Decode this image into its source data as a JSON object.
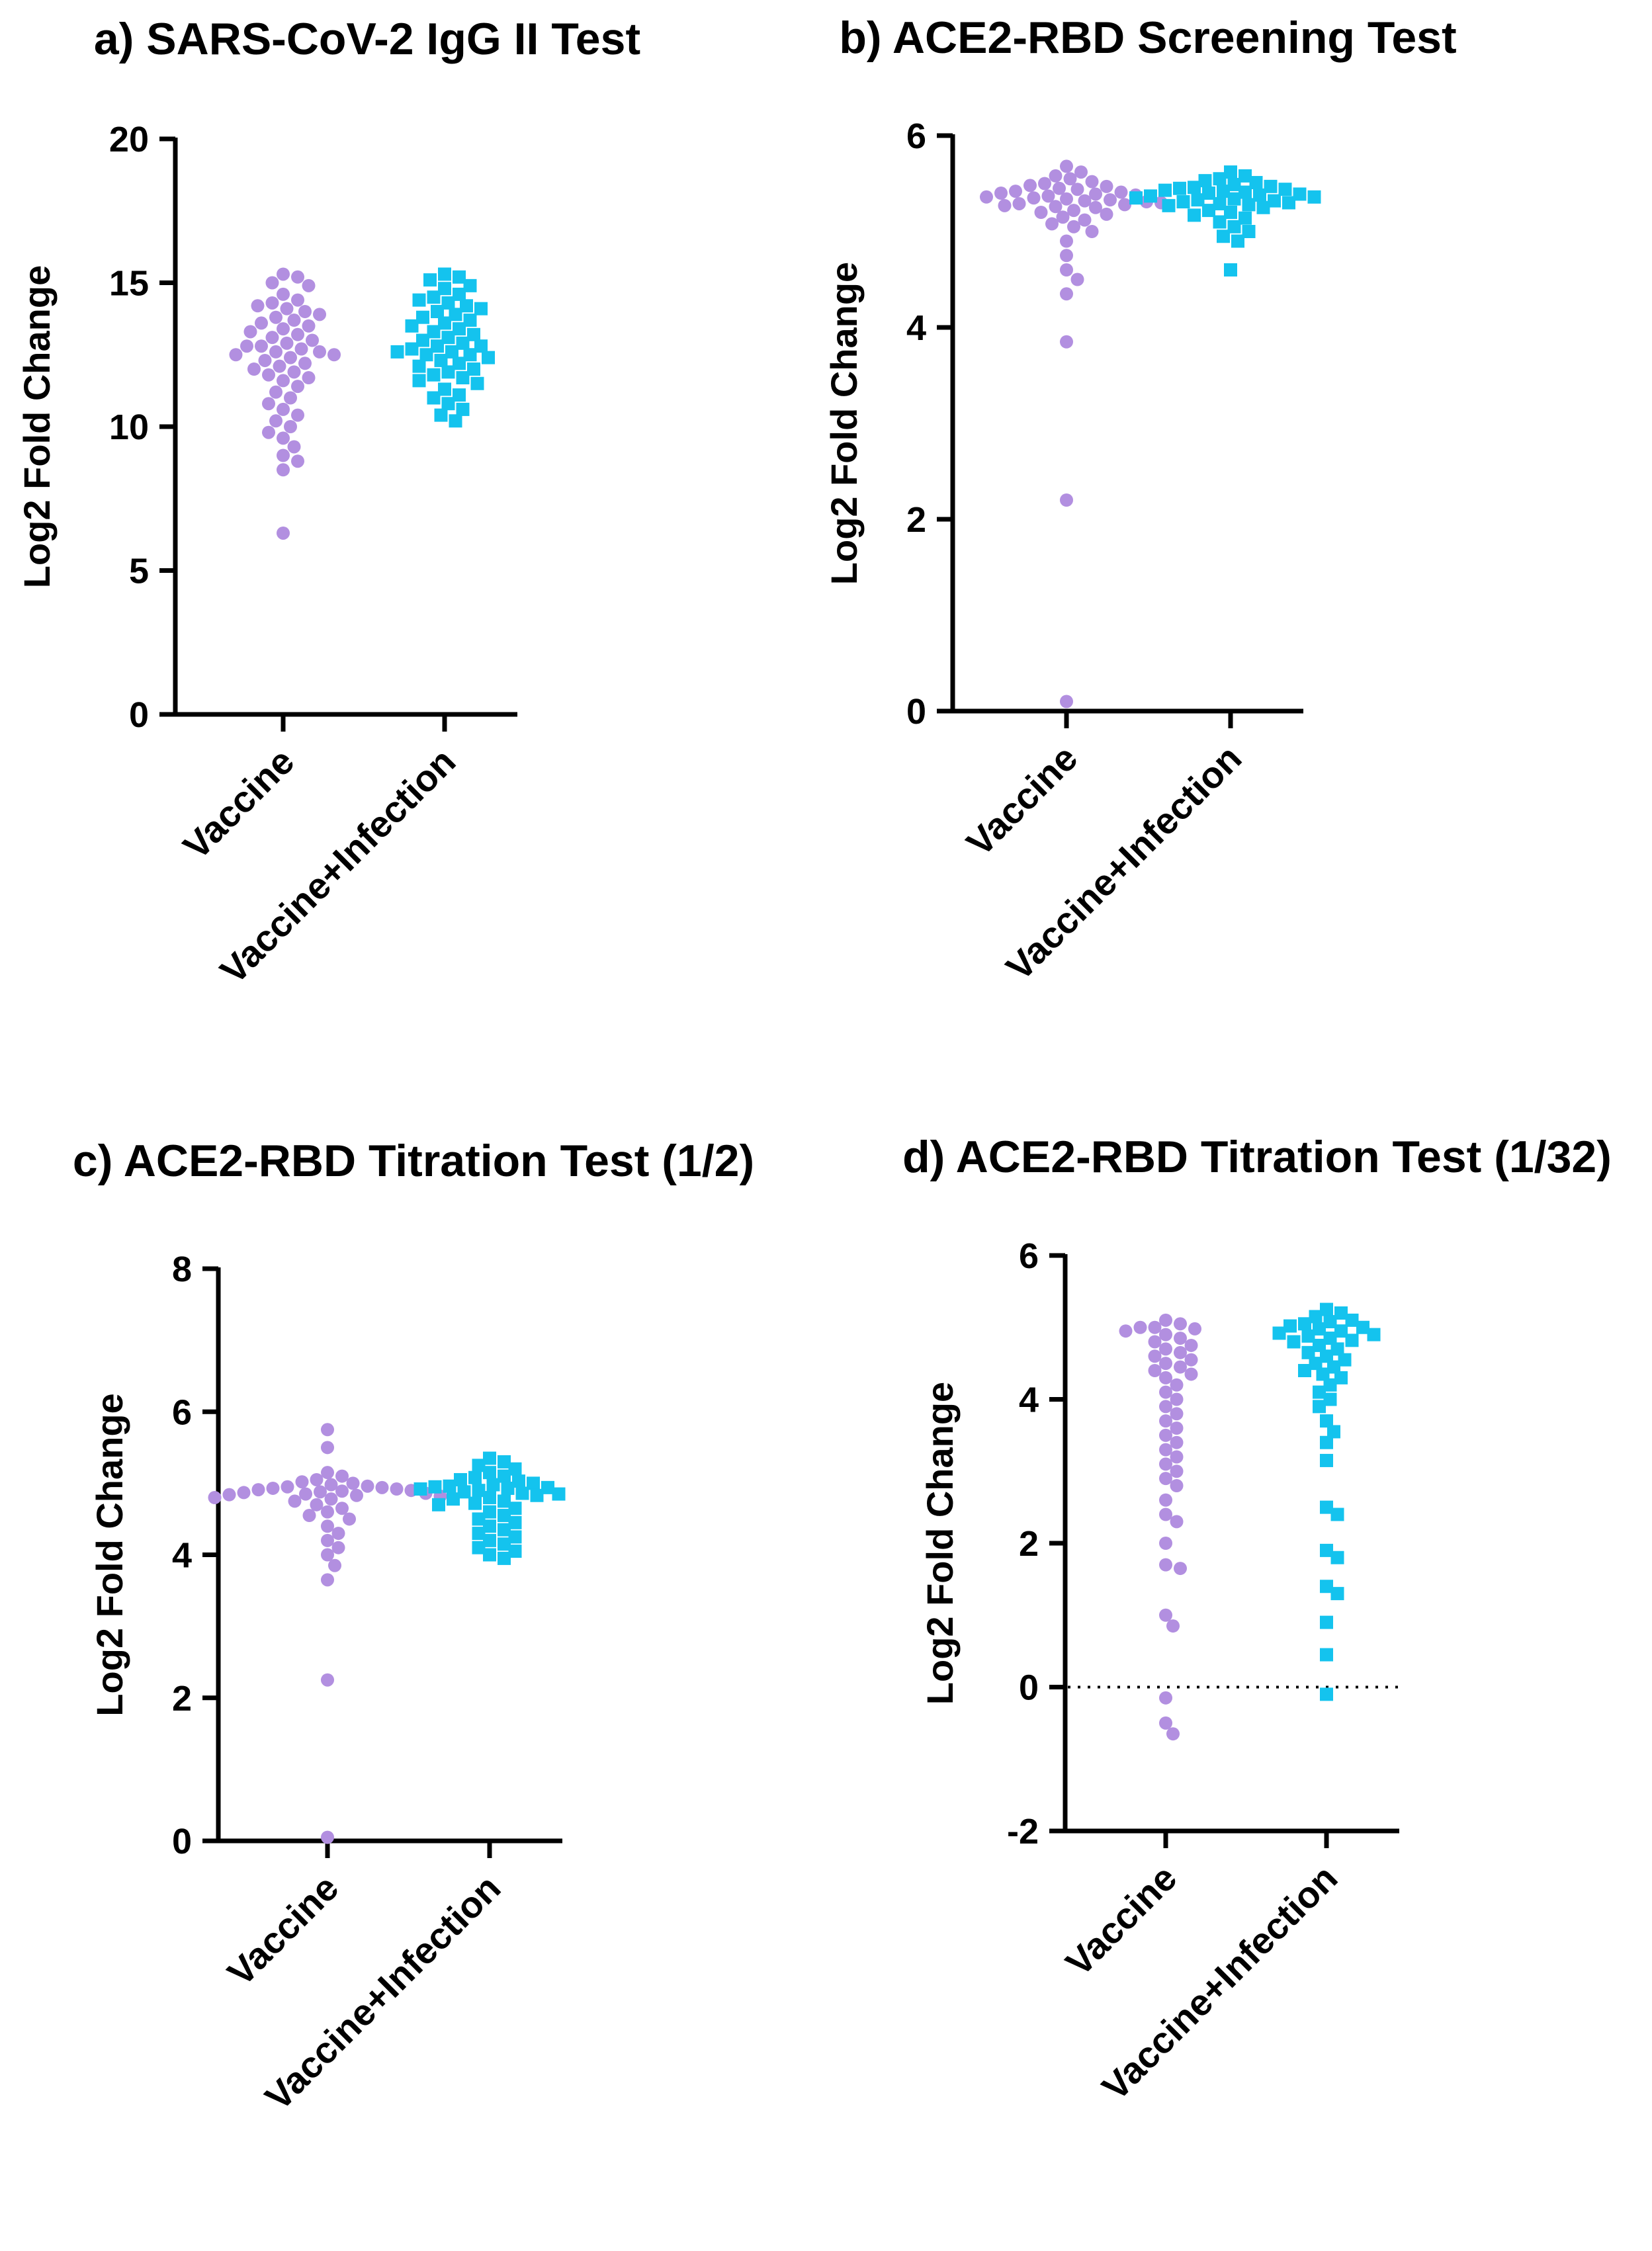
{
  "chart_data": [
    {
      "type": "scatter",
      "title": "a) SARS-CoV-2 IgG II Test",
      "ylabel": "Log2 Fold Change",
      "categories": [
        "Vaccine",
        "Vaccine+Infection"
      ],
      "ylim": [
        0,
        20
      ],
      "yticks": [
        0,
        5,
        10,
        15,
        20
      ],
      "reference_line": null,
      "series": [
        {
          "category": "Vaccine",
          "marker": "circle",
          "color": "#b28fe0",
          "values": [
            15.3,
            15.2,
            15.0,
            14.9,
            14.6,
            14.4,
            14.3,
            14.2,
            14.1,
            14.0,
            13.9,
            13.8,
            13.7,
            13.6,
            13.5,
            13.4,
            13.3,
            13.2,
            13.1,
            13.0,
            12.9,
            12.8,
            12.8,
            12.7,
            12.6,
            12.6,
            12.5,
            12.5,
            12.4,
            12.3,
            12.2,
            12.1,
            12.0,
            11.9,
            11.8,
            11.7,
            11.6,
            11.4,
            11.2,
            11.0,
            10.8,
            10.6,
            10.4,
            10.2,
            10.0,
            9.8,
            9.6,
            9.3,
            9.0,
            8.8,
            8.5,
            6.3
          ]
        },
        {
          "category": "Vaccine+Infection",
          "marker": "square",
          "color": "#14c3ee",
          "values": [
            15.3,
            15.2,
            15.1,
            14.9,
            14.8,
            14.6,
            14.5,
            14.4,
            14.3,
            14.2,
            14.1,
            14.0,
            13.9,
            13.8,
            13.7,
            13.6,
            13.5,
            13.4,
            13.3,
            13.2,
            13.1,
            13.0,
            12.9,
            12.8,
            12.8,
            12.7,
            12.6,
            12.6,
            12.5,
            12.5,
            12.4,
            12.3,
            12.2,
            12.1,
            12.0,
            11.9,
            11.8,
            11.7,
            11.6,
            11.5,
            11.3,
            11.1,
            11.0,
            10.8,
            10.6,
            10.4,
            10.2
          ]
        }
      ]
    },
    {
      "type": "scatter",
      "title": "b) ACE2-RBD Screening Test",
      "ylabel": "Log2 Fold Change",
      "categories": [
        "Vaccine",
        "Vaccine+Infection"
      ],
      "ylim": [
        0,
        6
      ],
      "yticks": [
        0,
        2,
        4,
        6
      ],
      "reference_line": null,
      "series": [
        {
          "category": "Vaccine",
          "marker": "circle",
          "color": "#b28fe0",
          "values": [
            5.68,
            5.62,
            5.58,
            5.55,
            5.52,
            5.5,
            5.48,
            5.47,
            5.45,
            5.44,
            5.42,
            5.41,
            5.4,
            5.39,
            5.38,
            5.37,
            5.36,
            5.35,
            5.34,
            5.33,
            5.32,
            5.31,
            5.3,
            5.29,
            5.28,
            5.27,
            5.26,
            5.25,
            5.22,
            5.2,
            5.18,
            5.15,
            5.12,
            5.08,
            5.05,
            5.0,
            4.9,
            4.75,
            4.6,
            4.5,
            4.35,
            3.85,
            2.2,
            0.1
          ]
        },
        {
          "category": "Vaccine+Infection",
          "marker": "square",
          "color": "#14c3ee",
          "values": [
            5.62,
            5.58,
            5.55,
            5.53,
            5.51,
            5.49,
            5.47,
            5.46,
            5.45,
            5.44,
            5.43,
            5.42,
            5.41,
            5.4,
            5.39,
            5.38,
            5.37,
            5.36,
            5.35,
            5.34,
            5.33,
            5.32,
            5.31,
            5.3,
            5.29,
            5.28,
            5.27,
            5.25,
            5.22,
            5.2,
            5.17,
            5.14,
            5.1,
            5.05,
            5.0,
            4.95,
            4.9,
            4.6
          ]
        }
      ]
    },
    {
      "type": "scatter",
      "title": "c) ACE2-RBD Titration Test (1/2)",
      "ylabel": "Log2 Fold Change",
      "categories": [
        "Vaccine",
        "Vaccine+Infection"
      ],
      "ylim": [
        0,
        8
      ],
      "yticks": [
        0,
        2,
        4,
        6,
        8
      ],
      "reference_line": null,
      "series": [
        {
          "category": "Vaccine",
          "marker": "circle",
          "color": "#b28fe0",
          "values": [
            5.75,
            5.5,
            5.15,
            5.1,
            5.05,
            5.02,
            5.0,
            4.98,
            4.96,
            4.95,
            4.94,
            4.93,
            4.92,
            4.91,
            4.9,
            4.89,
            4.88,
            4.87,
            4.86,
            4.85,
            4.84,
            4.83,
            4.82,
            4.8,
            4.78,
            4.75,
            4.7,
            4.65,
            4.6,
            4.55,
            4.5,
            4.4,
            4.3,
            4.2,
            4.1,
            4.0,
            3.85,
            3.65,
            2.25,
            0.05
          ]
        },
        {
          "category": "Vaccine+Infection",
          "marker": "square",
          "color": "#14c3ee",
          "values": [
            5.35,
            5.3,
            5.25,
            5.2,
            5.15,
            5.1,
            5.08,
            5.05,
            5.03,
            5.0,
            4.98,
            4.96,
            4.95,
            4.94,
            4.93,
            4.92,
            4.9,
            4.88,
            4.86,
            4.85,
            4.83,
            4.8,
            4.78,
            4.75,
            4.72,
            4.7,
            4.65,
            4.6,
            4.55,
            4.5,
            4.45,
            4.4,
            4.35,
            4.3,
            4.25,
            4.2,
            4.15,
            4.1,
            4.05,
            4.0,
            3.95
          ]
        }
      ]
    },
    {
      "type": "scatter",
      "title": "d) ACE2-RBD Titration Test (1/32)",
      "ylabel": "Log2 Fold Change",
      "categories": [
        "Vaccine",
        "Vaccine+Infection"
      ],
      "ylim": [
        -2,
        6
      ],
      "yticks": [
        -2,
        0,
        2,
        4,
        6
      ],
      "reference_line": 0,
      "series": [
        {
          "category": "Vaccine",
          "marker": "circle",
          "color": "#b28fe0",
          "values": [
            5.1,
            5.05,
            5.0,
            5.0,
            4.98,
            4.95,
            4.9,
            4.85,
            4.8,
            4.75,
            4.7,
            4.65,
            4.6,
            4.55,
            4.5,
            4.45,
            4.4,
            4.35,
            4.3,
            4.2,
            4.1,
            4.0,
            3.9,
            3.8,
            3.7,
            3.6,
            3.5,
            3.4,
            3.3,
            3.2,
            3.1,
            3.0,
            2.9,
            2.8,
            2.6,
            2.4,
            2.3,
            2.0,
            1.7,
            1.65,
            1.0,
            0.85,
            -0.15,
            -0.5,
            -0.65
          ]
        },
        {
          "category": "Vaccine+Infection",
          "marker": "square",
          "color": "#14c3ee",
          "values": [
            5.25,
            5.2,
            5.15,
            5.1,
            5.08,
            5.05,
            5.02,
            5.0,
            4.98,
            4.95,
            4.92,
            4.9,
            4.88,
            4.85,
            4.82,
            4.8,
            4.75,
            4.7,
            4.65,
            4.6,
            4.55,
            4.5,
            4.45,
            4.4,
            4.35,
            4.3,
            4.2,
            4.1,
            4.0,
            3.9,
            3.7,
            3.55,
            3.4,
            3.15,
            2.5,
            2.4,
            1.9,
            1.8,
            1.4,
            1.3,
            0.9,
            0.45,
            -0.1
          ]
        }
      ]
    }
  ]
}
